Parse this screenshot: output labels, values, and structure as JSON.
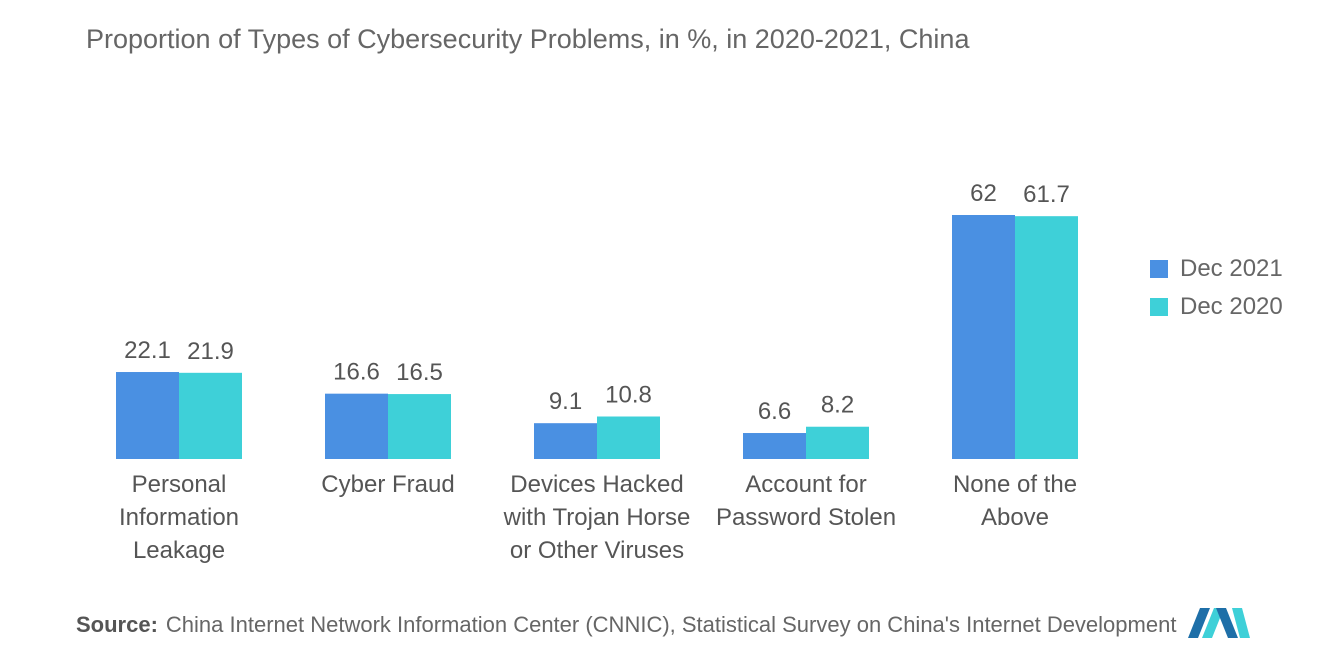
{
  "title": "Proportion of Types of Cybersecurity Problems, in %, in 2020-2021, China",
  "source": {
    "label": "Source:",
    "text": "China Internet Network Information Center (CNNIC), Statistical Survey on China's Internet Development"
  },
  "chart_data": {
    "type": "bar",
    "title": "Proportion of Types of Cybersecurity Problems, in %, in 2020-2021, China",
    "categories": [
      "Personal Information Leakage",
      "Cyber Fraud",
      "Devices Hacked with Trojan Horse or Other Viruses",
      "Account for Password Stolen",
      "None of the Above"
    ],
    "category_lines": [
      [
        "Personal",
        "Information",
        "Leakage"
      ],
      [
        "Cyber Fraud"
      ],
      [
        "Devices Hacked",
        "with Trojan Horse",
        "or Other Viruses"
      ],
      [
        "Account for",
        "Password Stolen"
      ],
      [
        "None of the",
        "Above"
      ]
    ],
    "series": [
      {
        "name": "Dec 2021",
        "color": "#4A90E2",
        "values": [
          22.1,
          16.6,
          9.1,
          6.6,
          62
        ]
      },
      {
        "name": "Dec 2020",
        "color": "#3ED0D8",
        "values": [
          21.9,
          16.5,
          10.8,
          8.2,
          61.7
        ]
      }
    ],
    "data_labels": [
      [
        "22.1",
        "16.6",
        "9.1",
        "6.6",
        "62"
      ],
      [
        "21.9",
        "16.5",
        "10.8",
        "8.2",
        "61.7"
      ]
    ],
    "xlabel": "",
    "ylabel": "",
    "ylim": [
      0,
      62
    ],
    "grid": false,
    "legend_position": "right"
  }
}
